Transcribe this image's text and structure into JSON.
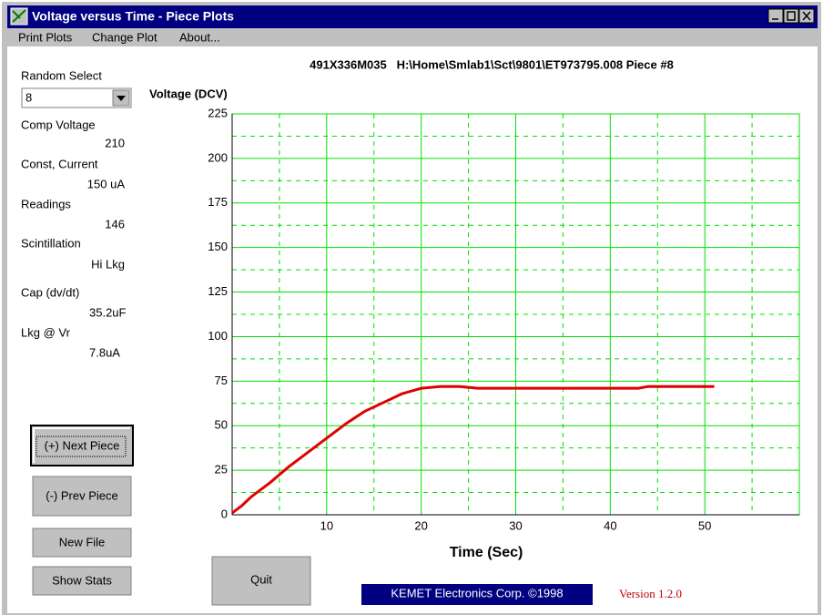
{
  "window": {
    "title": "Voltage versus Time - Piece Plots"
  },
  "menu": [
    "Print Plots",
    "Change Plot",
    "About..."
  ],
  "panel": {
    "select_label": "Random Select",
    "select_value": "8",
    "fields": [
      {
        "label": "Comp Voltage",
        "value": "210"
      },
      {
        "label": "Const, Current",
        "value": "150 uA"
      },
      {
        "label": "Readings",
        "value": "146"
      },
      {
        "label": "Scintillation",
        "value": "Hi Lkg"
      },
      {
        "label": "Cap (dv/dt)",
        "value": "35.2uF"
      },
      {
        "label": "Lkg @ Vr",
        "value": "7.8uA"
      }
    ]
  },
  "buttons": [
    "(+) Next Piece",
    "(-) Prev Piece",
    "New File",
    "Show Stats",
    "Quit"
  ],
  "footer": {
    "company": "KEMET Electronics Corp. ©1998",
    "version": "Version 1.2.0"
  },
  "chart_data": {
    "type": "line",
    "title": "491X336M035   H:\\Home\\Smlab1\\Sct\\9801\\ET973795.008 Piece #8",
    "x_label": "Time (Sec)",
    "y_label": "Voltage (DCV)",
    "xlim": [
      0,
      60
    ],
    "ylim": [
      0,
      225
    ],
    "xticks": [
      10,
      20,
      30,
      40,
      50
    ],
    "yticks": [
      0,
      25,
      50,
      75,
      100,
      125,
      150,
      175,
      200,
      225
    ],
    "minor_xticks": [
      5,
      15,
      25,
      35,
      45,
      55
    ],
    "minor_yticks": [
      12.5,
      37.5,
      62.5,
      87.5,
      112.5,
      137.5,
      162.5,
      187.5,
      212.5
    ],
    "grid": true,
    "grid_color": "#00e000",
    "x": [
      0,
      1,
      2,
      4,
      6,
      8,
      10,
      12,
      14,
      16,
      18,
      20,
      22,
      24,
      26,
      30,
      35,
      40,
      43,
      44,
      51
    ],
    "series": [
      {
        "color": "#e00000",
        "values": [
          1,
          5,
          10,
          18,
          27,
          35,
          43,
          51,
          58,
          63,
          68,
          71,
          72,
          72,
          71,
          71,
          71,
          71,
          71,
          72,
          72
        ]
      }
    ]
  }
}
